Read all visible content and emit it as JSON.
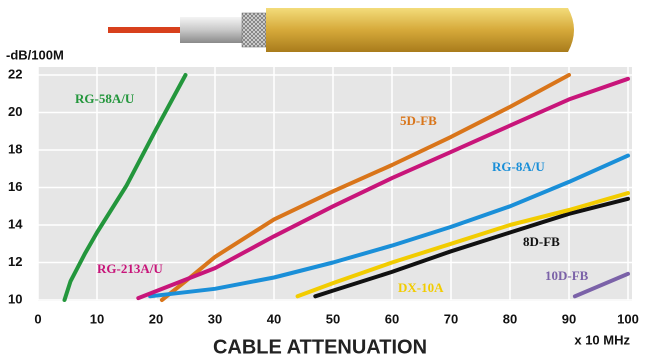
{
  "chart_data": {
    "type": "line",
    "title": "CABLE ATTENUATION",
    "y_label": "-dB/100M",
    "x_label": "x 10 MHz",
    "xlim": [
      0,
      100
    ],
    "ylim": [
      10,
      22
    ],
    "xticks": [
      0,
      10,
      20,
      30,
      40,
      50,
      60,
      70,
      80,
      90,
      100
    ],
    "yticks": [
      10,
      12,
      14,
      16,
      18,
      20,
      22
    ],
    "grid": true,
    "series": [
      {
        "name": "RG-58A/U",
        "color": "#23963c",
        "x": [
          4.5,
          5.5,
          8,
          10,
          15,
          20,
          25
        ],
        "values": [
          10,
          11,
          12.5,
          13.6,
          16.1,
          19.1,
          22
        ]
      },
      {
        "name": "5D-FB",
        "color": "#d9751a",
        "x": [
          21,
          25,
          30,
          40,
          50,
          60,
          70,
          80,
          90
        ],
        "values": [
          10,
          11,
          12.3,
          14.3,
          15.8,
          17.2,
          18.7,
          20.3,
          22
        ]
      },
      {
        "name": "RG-8A/U",
        "color": "#1a8fd8",
        "x": [
          19,
          30,
          40,
          50,
          60,
          70,
          80,
          90,
          100
        ],
        "values": [
          10.2,
          10.6,
          11.2,
          12,
          12.9,
          13.9,
          15,
          16.3,
          17.7
        ]
      },
      {
        "name": "8D-FB",
        "color": "#111111",
        "x": [
          47,
          50,
          60,
          70,
          80,
          90,
          100
        ],
        "values": [
          10.2,
          10.5,
          11.5,
          12.6,
          13.6,
          14.6,
          15.4
        ]
      },
      {
        "name": "RG-213A/U",
        "color": "#c8157a",
        "x": [
          17,
          30,
          40,
          50,
          60,
          70,
          80,
          90,
          100
        ],
        "values": [
          10.1,
          11.7,
          13.4,
          15,
          16.5,
          17.9,
          19.3,
          20.7,
          21.8
        ]
      },
      {
        "name": "DX-10A",
        "color": "#f2cc00",
        "x": [
          44,
          50,
          60,
          70,
          80,
          90,
          100
        ],
        "values": [
          10.2,
          10.9,
          12,
          13,
          14,
          14.8,
          15.7
        ]
      },
      {
        "name": "10D-FB",
        "color": "#7b62a8",
        "x": [
          91,
          100
        ],
        "values": [
          10.2,
          11.4
        ]
      }
    ]
  }
}
